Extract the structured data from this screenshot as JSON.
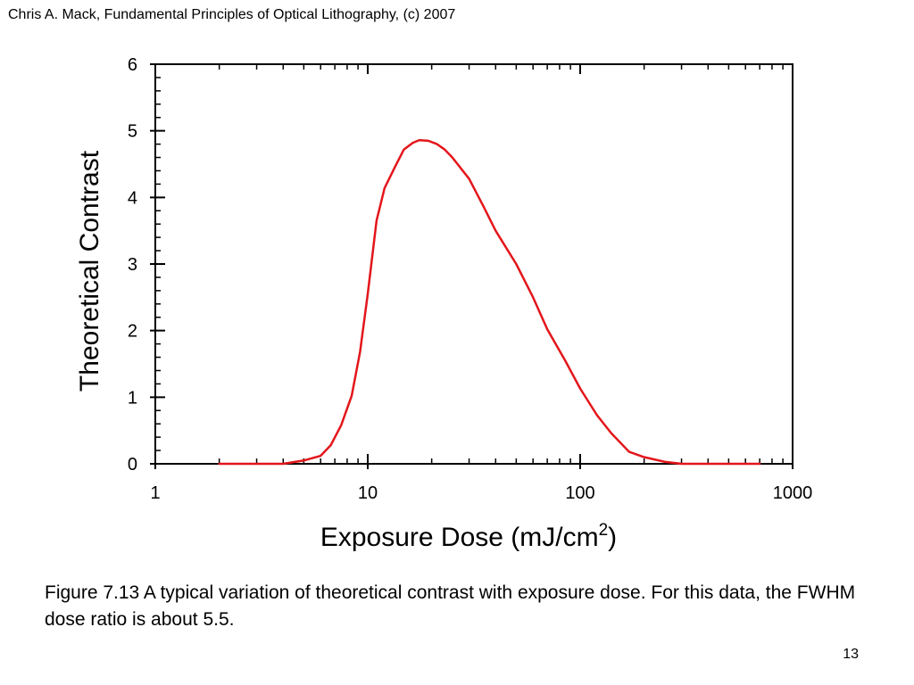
{
  "header": {
    "text": "Chris A. Mack, Fundamental Principles of Optical Lithography, (c) 2007"
  },
  "caption": {
    "text": "Figure 7.13  A typical variation of theoretical contrast with exposure dose.  For this data, the FWHM dose ratio is about 5.5."
  },
  "page_number": "13",
  "chart_data": {
    "type": "line",
    "title": "",
    "xlabel_main": "Exposure Dose (mJ/cm",
    "xlabel_sup": "2",
    "xlabel_end": ")",
    "ylabel": "Theoretical Contrast",
    "xscale": "log",
    "xlim": [
      1,
      1000
    ],
    "ylim": [
      0,
      6
    ],
    "x_ticks": [
      1,
      10,
      100,
      1000
    ],
    "x_tick_labels": [
      "1",
      "10",
      "100",
      "1000"
    ],
    "y_ticks": [
      0,
      1,
      2,
      3,
      4,
      5,
      6
    ],
    "y_tick_labels": [
      "0",
      "1",
      "2",
      "3",
      "4",
      "5",
      "6"
    ],
    "grid": false,
    "series": [
      {
        "color": "#e3161b",
        "x": [
          2,
          4,
          5,
          6,
          6.7,
          7.5,
          8.4,
          9.2,
          10,
          11,
          12,
          13.4,
          14.8,
          16.3,
          17.5,
          19.3,
          21.2,
          23,
          25,
          30,
          35,
          40,
          50,
          60,
          70,
          85,
          100,
          120,
          140,
          170,
          200,
          250,
          300,
          400,
          500,
          700
        ],
        "y": [
          0,
          0,
          0.05,
          0.12,
          0.28,
          0.58,
          1.02,
          1.68,
          2.55,
          3.65,
          4.14,
          4.45,
          4.72,
          4.82,
          4.86,
          4.85,
          4.8,
          4.72,
          4.6,
          4.28,
          3.87,
          3.5,
          3.0,
          2.5,
          2.02,
          1.55,
          1.13,
          0.73,
          0.46,
          0.18,
          0.1,
          0.03,
          0,
          0,
          0,
          0
        ]
      }
    ]
  }
}
